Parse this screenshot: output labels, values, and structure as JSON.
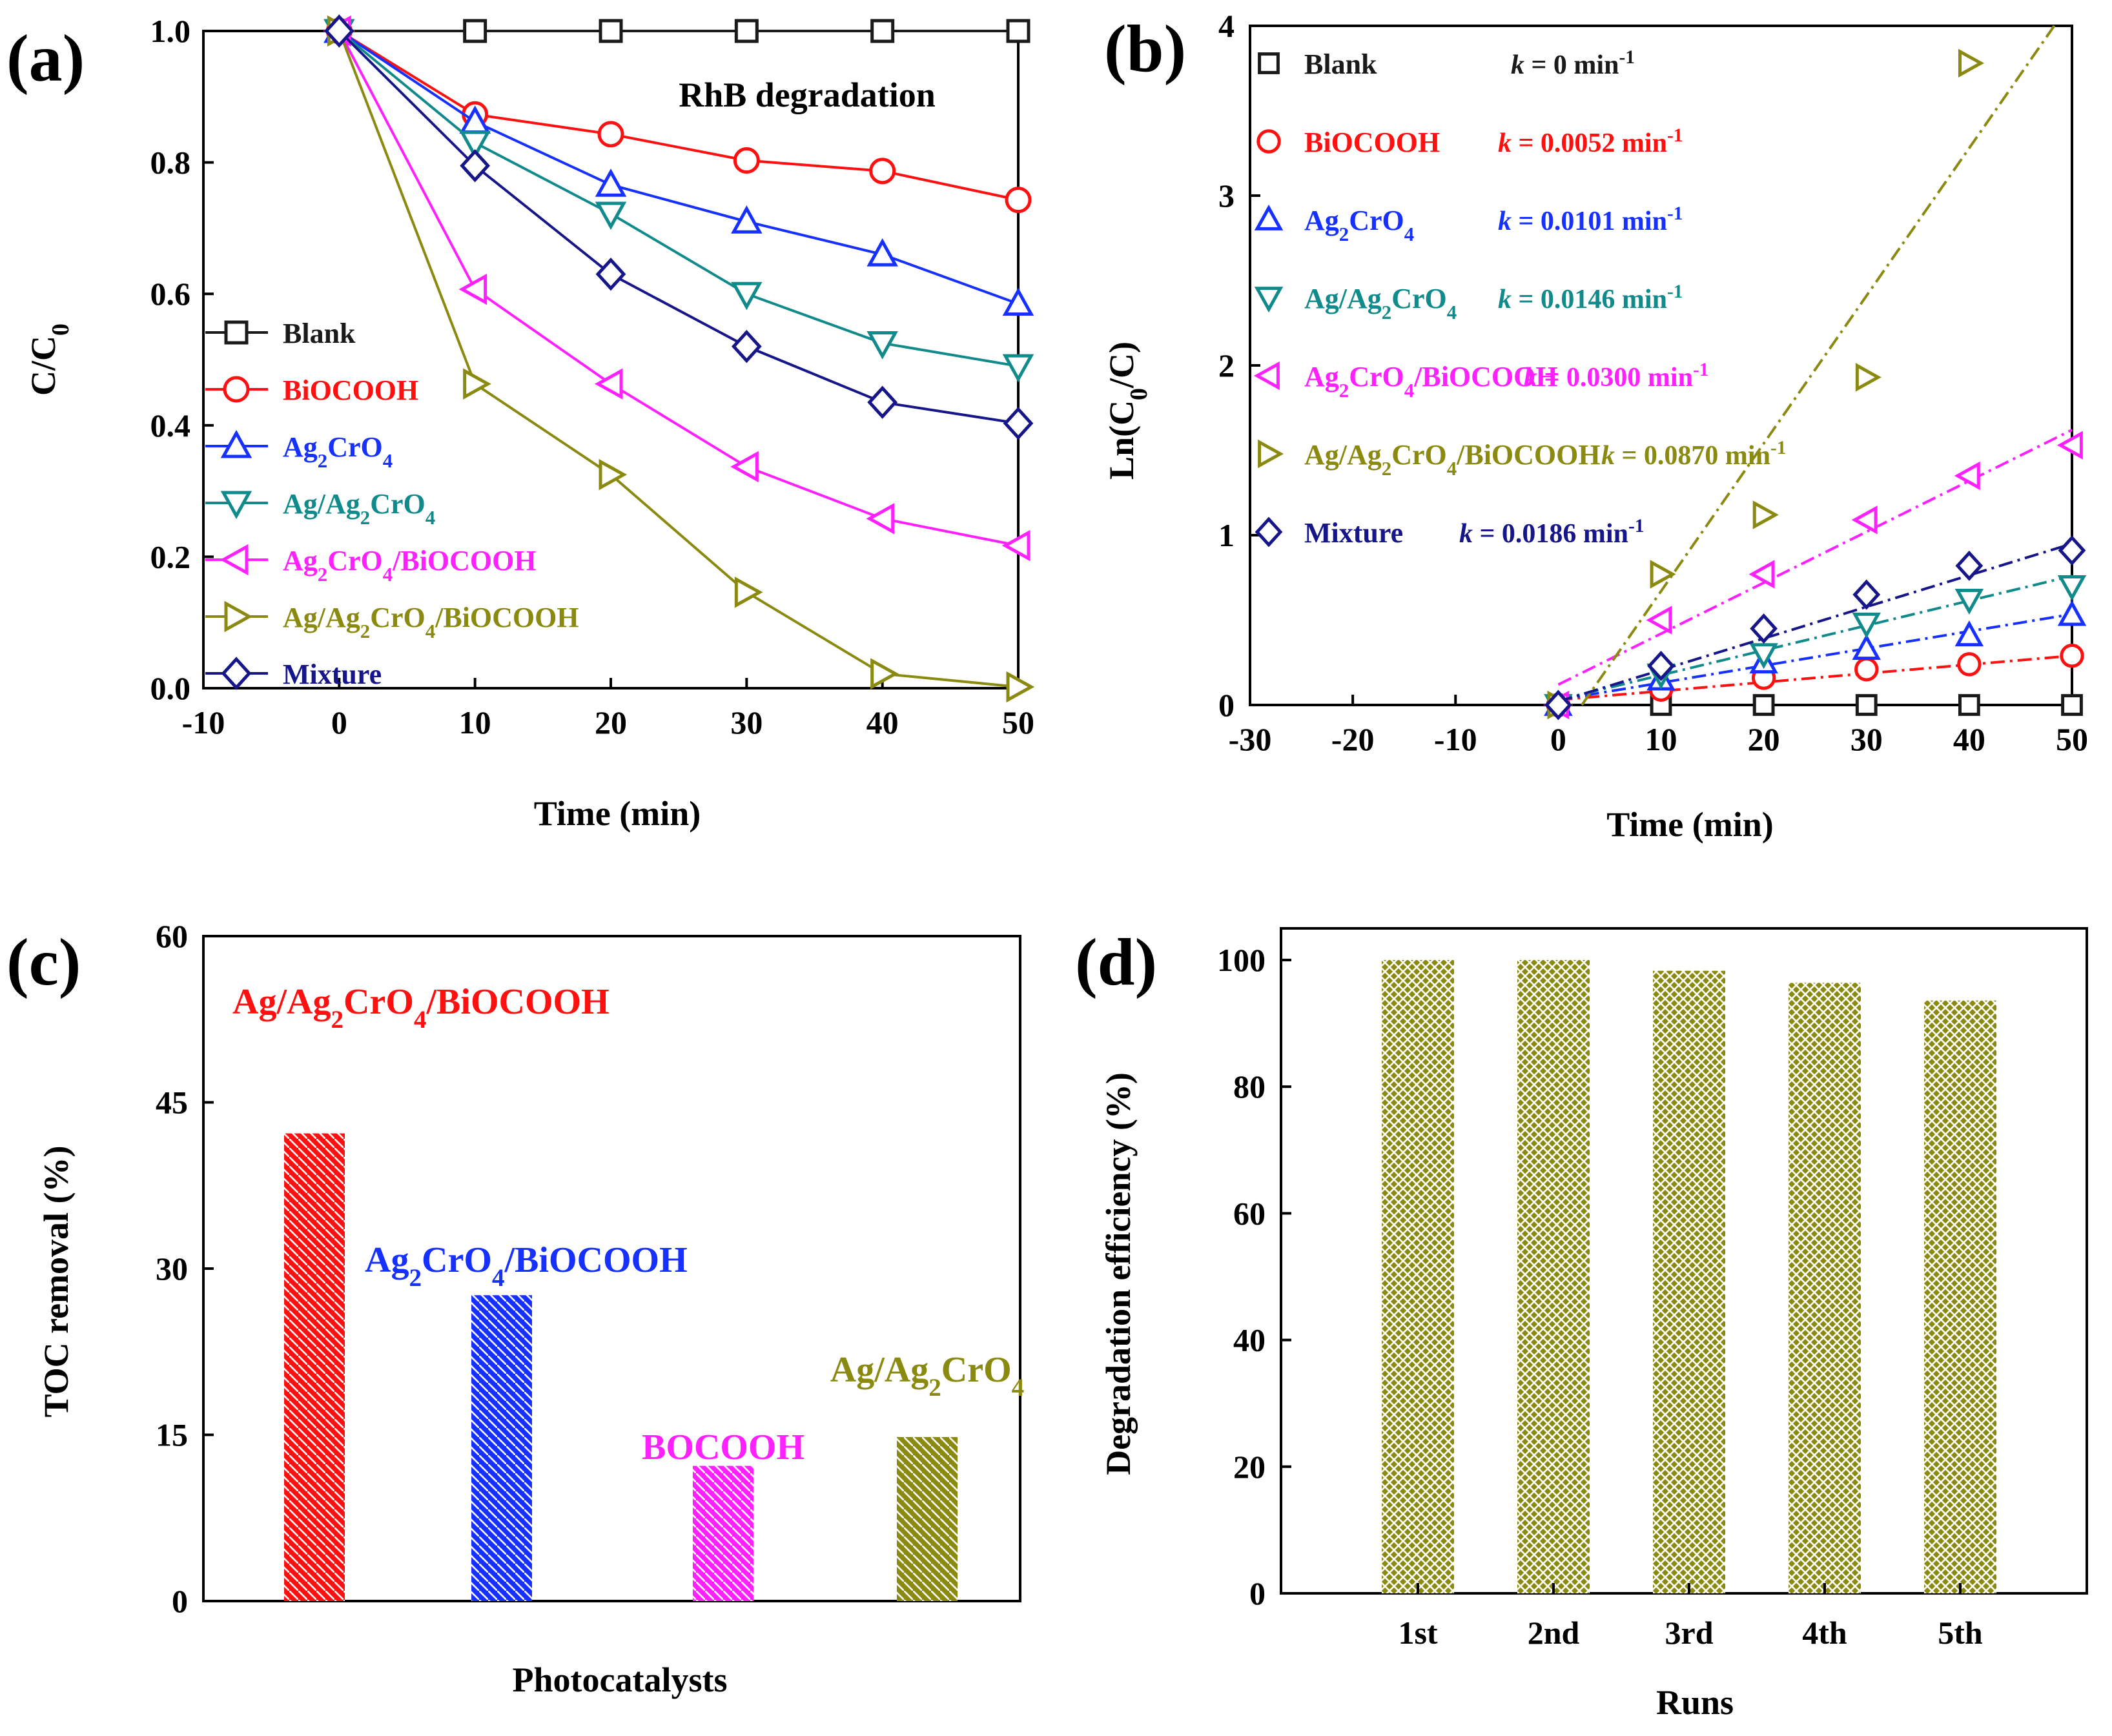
{
  "figure": {
    "panels": [
      "(a)",
      "(b)",
      "(c)",
      "(d)"
    ]
  },
  "colors": {
    "Blank": "#1a1a1a",
    "BiOCOOH": "#ff1010",
    "Ag2CrO4": "#1530ff",
    "Ag/Ag2CrO4": "#108a8a",
    "Ag2CrO4/BiOCOOH": "#ff20ff",
    "Ag/Ag2CrO4/BiOCOOH": "#8a8a10",
    "Mixture": "#16168a"
  },
  "chart_data": [
    {
      "panel": "(a)",
      "type": "line",
      "title": "RhB degradation",
      "xlabel": "Time (min)",
      "ylabel": "C/C0",
      "xlim": [
        -10,
        50
      ],
      "ylim": [
        0.0,
        1.0
      ],
      "xticks": [
        -10,
        0,
        10,
        20,
        30,
        40,
        50
      ],
      "yticks": [
        0.0,
        0.2,
        0.4,
        0.6,
        0.8,
        1.0
      ],
      "x": [
        0,
        10,
        20,
        30,
        40,
        50
      ],
      "legend_position": "left",
      "series": [
        {
          "name": "Blank",
          "label": [
            "Blank"
          ],
          "marker": "square",
          "values": [
            1.0,
            1.0,
            1.0,
            1.0,
            1.0,
            1.0
          ]
        },
        {
          "name": "BiOCOOH",
          "label": [
            "BiOCOOH"
          ],
          "marker": "circle",
          "values": [
            1.0,
            0.873,
            0.843,
            0.803,
            0.787,
            0.743
          ]
        },
        {
          "name": "Ag2CrO4",
          "label": [
            "Ag",
            "2",
            "CrO",
            "4"
          ],
          "marker": "triangle-up",
          "values": [
            1.0,
            0.862,
            0.766,
            0.71,
            0.66,
            0.585
          ]
        },
        {
          "name": "Ag/Ag2CrO4",
          "label": [
            "Ag/Ag",
            "2",
            "CrO",
            "4"
          ],
          "marker": "triangle-down",
          "values": [
            1.0,
            0.83,
            0.722,
            0.6,
            0.525,
            0.49
          ]
        },
        {
          "name": "Ag2CrO4/BiOCOOH",
          "label": [
            "Ag",
            "2",
            "CrO",
            "4",
            "/BiOCOOH"
          ],
          "marker": "triangle-left",
          "values": [
            1.0,
            0.607,
            0.463,
            0.337,
            0.258,
            0.217
          ]
        },
        {
          "name": "Ag/Ag2CrO4/BiOCOOH",
          "label": [
            "Ag/Ag",
            "2",
            "CrO",
            "4",
            "/BiOCOOH"
          ],
          "marker": "triangle-right",
          "values": [
            1.0,
            0.463,
            0.325,
            0.146,
            0.022,
            0.002
          ]
        },
        {
          "name": "Mixture",
          "label": [
            "Mixture"
          ],
          "marker": "diamond",
          "values": [
            1.0,
            0.795,
            0.63,
            0.52,
            0.435,
            0.403
          ]
        }
      ]
    },
    {
      "panel": "(b)",
      "type": "scatter",
      "xlabel": "Time (min)",
      "ylabel": "Ln(C0/C)",
      "xlim": [
        -30,
        50
      ],
      "ylim": [
        0,
        4
      ],
      "xticks": [
        -30,
        -20,
        -10,
        0,
        10,
        20,
        30,
        40,
        50
      ],
      "yticks": [
        0,
        1,
        2,
        3,
        4
      ],
      "x": [
        0,
        10,
        20,
        30,
        40,
        50
      ],
      "legend_position": "top-left",
      "series": [
        {
          "name": "Blank",
          "label": [
            "Blank"
          ],
          "k_text": "k = 0 min-1",
          "k_value": "= 0 min",
          "marker": "square",
          "values": [
            0,
            0,
            0,
            0,
            0,
            0
          ],
          "fit": {
            "slope": 0,
            "intercept": 0
          }
        },
        {
          "name": "BiOCOOH",
          "label": [
            "BiOCOOH"
          ],
          "k_text": "k = 0.0052 min-1",
          "k_value": "= 0.0052 min",
          "marker": "circle",
          "values": [
            0,
            0.09,
            0.16,
            0.21,
            0.24,
            0.29
          ],
          "fit": {
            "slope": 0.0052,
            "intercept": 0.03
          }
        },
        {
          "name": "Ag2CrO4",
          "label": [
            "Ag",
            "2",
            "CrO",
            "4"
          ],
          "k_text": "k = 0.0101 min-1",
          "k_value": "= 0.0101 min",
          "marker": "triangle-up",
          "values": [
            0,
            0.15,
            0.25,
            0.33,
            0.41,
            0.53
          ],
          "fit": {
            "slope": 0.0101,
            "intercept": 0.03
          }
        },
        {
          "name": "Ag/Ag2CrO4",
          "label": [
            "Ag/Ag",
            "2",
            "CrO",
            "4"
          ],
          "k_text": "k = 0.0146 min-1",
          "k_value": "= 0.0146 min",
          "marker": "triangle-down",
          "values": [
            0,
            0.18,
            0.3,
            0.48,
            0.62,
            0.7
          ],
          "fit": {
            "slope": 0.0146,
            "intercept": 0.03
          }
        },
        {
          "name": "Ag2CrO4/BiOCOOH",
          "label": [
            "Ag",
            "2",
            "CrO",
            "4",
            "/BiOCOOH"
          ],
          "k_text": "k = 0.0300 min-1",
          "k_value": "= 0.0300 min",
          "marker": "triangle-left",
          "values": [
            0,
            0.5,
            0.77,
            1.09,
            1.35,
            1.53
          ],
          "fit": {
            "slope": 0.03,
            "intercept": 0.12
          }
        },
        {
          "name": "Ag/Ag2CrO4/BiOCOOH",
          "label": [
            "Ag/Ag",
            "2",
            "CrO",
            "4",
            "/BiOCOOH"
          ],
          "k_text": "k = 0.0870 min-1",
          "k_value": "= 0.0870 min",
          "marker": "triangle-right",
          "values": [
            0,
            0.77,
            1.12,
            1.93,
            3.78,
            null
          ],
          "fit": {
            "slope": 0.087,
            "intercept": -0.2
          }
        },
        {
          "name": "Mixture",
          "label": [
            "Mixture"
          ],
          "k_text": "k = 0.0186 min-1",
          "k_value": "= 0.0186 min",
          "marker": "diamond",
          "values": [
            0,
            0.23,
            0.45,
            0.65,
            0.82,
            0.91
          ],
          "fit": {
            "slope": 0.0186,
            "intercept": 0.02
          }
        }
      ],
      "k_symbol": "k",
      "k_superscript": "-1"
    },
    {
      "panel": "(c)",
      "type": "bar",
      "xlabel": "Photocatalysts",
      "ylabel": "TOC removal (%)",
      "ylim": [
        0,
        60
      ],
      "yticks": [
        0,
        15,
        30,
        45,
        60
      ],
      "categories": [
        "Ag/Ag2CrO4/BiOCOOH",
        "Ag2CrO4/BiOCOOH",
        "BOCOOH",
        "Ag/Ag2CrO4"
      ],
      "values": [
        42.2,
        27.6,
        12.2,
        14.8
      ],
      "bar_colors": [
        "#ff1010",
        "#1530ff",
        "#ff20ff",
        "#8a8a10"
      ],
      "bar_labels": [
        [
          "Ag/Ag",
          "2",
          "CrO",
          "4",
          "/BiOCOOH"
        ],
        [
          "Ag",
          "2",
          "CrO",
          "4",
          "/BiOCOOH"
        ],
        [
          "BOCOOH"
        ],
        [
          "Ag/Ag",
          "2",
          "CrO",
          "4"
        ]
      ]
    },
    {
      "panel": "(d)",
      "type": "bar",
      "xlabel": "Runs",
      "ylabel": "Degradation efficiency (%)",
      "ylim": [
        0,
        105
      ],
      "yticks": [
        0,
        20,
        40,
        60,
        80,
        100
      ],
      "categories": [
        "1st",
        "2nd",
        "3rd",
        "4th",
        "5th"
      ],
      "values": [
        100,
        100,
        98.3,
        96.4,
        93.6
      ],
      "bar_color": "#8a8a10"
    }
  ]
}
